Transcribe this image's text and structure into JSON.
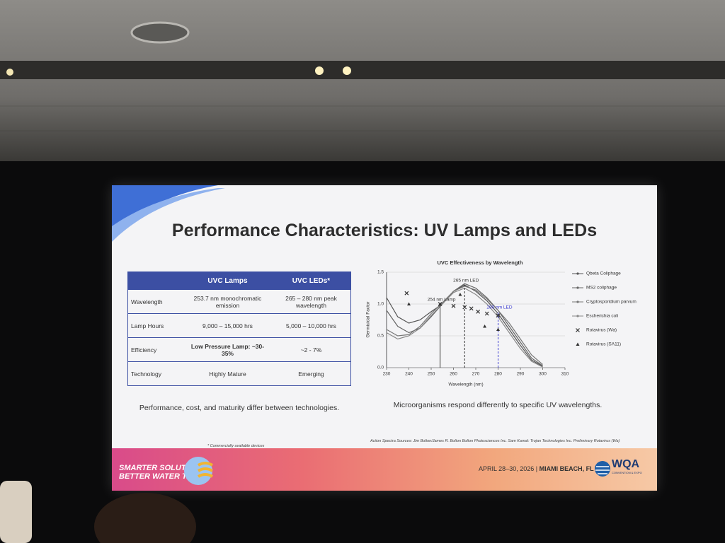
{
  "slide": {
    "title": "Performance Characteristics: UV Lamps and LEDs",
    "table": {
      "header": [
        "UVC Lamps",
        "UVC LEDs*"
      ],
      "rows": [
        [
          "Wavelength",
          "253.7 nm  monochromatic emission",
          "265 – 280 nm peak wavelength"
        ],
        [
          "Lamp Hours",
          "9,000 – 15,000 hrs",
          "5,000 – 10,000 hrs"
        ],
        [
          "Efficiency",
          "Low Pressure Lamp: ~30-35%",
          "~2 - 7%"
        ],
        [
          "Technology",
          "Highly Mature",
          "Emerging"
        ]
      ]
    },
    "table_caption": "Performance, cost, and maturity differ between technologies.",
    "chart_caption": "Microorganisms respond differently to specific UV wavelengths.",
    "footnote": "* Commercially available devices",
    "sources": "Action Spectra Sources: Jim Bolton/James R. Bolton Bolton Photosciences Inc. Sam Kamal: Trojan Technologies Inc. Preliminary Rotavirus (Wa)",
    "footer": {
      "brand_line1": "SMARTER SOLUTIONS.",
      "brand_line2": "BETTER WATER TODAY.",
      "dates": "APRIL 28–30, 2026",
      "location": "MIAMI BEACH, FL",
      "logo": "WQA",
      "logo_sub": "CONVENTION & EXPO"
    }
  },
  "chart_data": {
    "type": "line",
    "title": "UVC Effectiveness by Wavelength",
    "x_label": "Wavelength (nm)",
    "y_label": "Germicidal Factor",
    "x": [
      230,
      235,
      240,
      245,
      250,
      255,
      260,
      265,
      270,
      275,
      280,
      285,
      290,
      295,
      300
    ],
    "xlim": [
      230,
      310
    ],
    "xticks": [
      230,
      240,
      250,
      260,
      270,
      280,
      290,
      300,
      310
    ],
    "ylim": [
      0,
      1.5
    ],
    "yticks": [
      {
        "value": 0,
        "label": "0.0"
      },
      0.5,
      {
        "value": 1,
        "label": "1.0"
      },
      1.5
    ],
    "grid": true,
    "series": [
      {
        "name": "Qbeta Coliphage",
        "color": "#555555",
        "values": [
          1.1,
          0.8,
          0.7,
          0.75,
          0.88,
          1.0,
          1.2,
          1.3,
          1.2,
          1.05,
          0.85,
          0.6,
          0.35,
          0.12,
          0.02
        ]
      },
      {
        "name": "MS2 coliphage",
        "color": "#666666",
        "values": [
          0.9,
          0.65,
          0.55,
          0.62,
          0.8,
          1.0,
          1.2,
          1.32,
          1.25,
          1.1,
          0.9,
          0.65,
          0.4,
          0.15,
          0.03
        ]
      },
      {
        "name": "Cryptosporidium parvum",
        "color": "#777777",
        "values": [
          0.6,
          0.5,
          0.52,
          0.65,
          0.85,
          1.02,
          1.2,
          1.28,
          1.22,
          1.08,
          0.9,
          0.7,
          0.45,
          0.2,
          0.05
        ]
      },
      {
        "name": "Escherichia coli",
        "color": "#888888",
        "values": [
          0.55,
          0.45,
          0.5,
          0.62,
          0.82,
          1.0,
          1.18,
          1.25,
          1.15,
          1.0,
          0.8,
          0.55,
          0.3,
          0.1,
          0.01
        ]
      }
    ],
    "point_series": [
      {
        "name": "Rotavirus (Wa)",
        "marker": "x",
        "color": "#333333",
        "x": [
          239,
          254,
          260,
          265,
          268,
          271,
          275,
          280
        ],
        "y": [
          1.17,
          1.0,
          0.97,
          0.95,
          0.93,
          0.88,
          0.85,
          0.82
        ]
      },
      {
        "name": "Rotavirus (SA11)",
        "marker": "triangle",
        "color": "#333333",
        "x": [
          240,
          254,
          263,
          274,
          280
        ],
        "y": [
          1.0,
          1.0,
          1.15,
          0.65,
          0.6
        ]
      }
    ],
    "annotations": [
      {
        "text": "254 nm Lamp",
        "x": 254,
        "y": 1.0,
        "style": "solid",
        "color": "#333333"
      },
      {
        "text": "265 nm LED",
        "x": 265,
        "y": 1.3,
        "style": "dashed",
        "color": "#333333"
      },
      {
        "text": "280 nm LED",
        "x": 280,
        "y": 0.88,
        "style": "dashed",
        "color": "#3a3ad0"
      }
    ]
  }
}
